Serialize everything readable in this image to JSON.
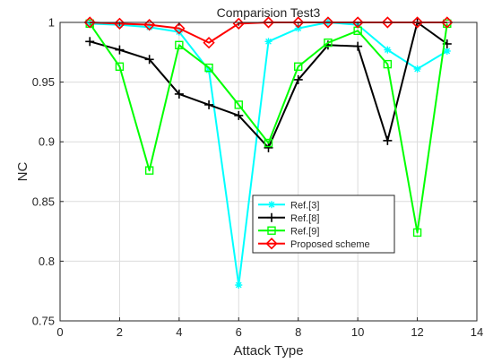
{
  "chart_data": {
    "type": "line",
    "title": "Comparision Test3",
    "xlabel": "Attack Type",
    "ylabel": "NC",
    "xlim": [
      0,
      14
    ],
    "ylim": [
      0.75,
      1
    ],
    "xticks": [
      "0",
      "2",
      "4",
      "6",
      "8",
      "10",
      "12",
      "14"
    ],
    "xtick_values": [
      0,
      2,
      4,
      6,
      8,
      10,
      12,
      14
    ],
    "yticks": [
      "0.75",
      "0.8",
      "0.85",
      "0.9",
      "0.95",
      "1"
    ],
    "ytick_values": [
      0.75,
      0.8,
      0.85,
      0.9,
      0.95,
      1
    ],
    "grid": true,
    "legend_position": "center",
    "x": [
      1,
      2,
      3,
      4,
      5,
      6,
      7,
      8,
      9,
      10,
      11,
      12,
      13
    ],
    "series": [
      {
        "name": "Ref.[3]",
        "color": "#00ffff",
        "marker": "asterisk",
        "values": [
          0.999,
          0.998,
          0.996,
          0.992,
          0.96,
          0.78,
          0.984,
          0.995,
          1.0,
          0.998,
          0.977,
          0.961,
          0.976
        ]
      },
      {
        "name": "Ref.[8]",
        "color": "#000000",
        "marker": "plus",
        "values": [
          0.984,
          0.977,
          0.969,
          0.94,
          0.931,
          0.922,
          0.895,
          0.952,
          0.981,
          0.98,
          0.901,
          1.0,
          0.982
        ]
      },
      {
        "name": "Ref.[9]",
        "color": "#00ff00",
        "marker": "square",
        "values": [
          0.999,
          0.963,
          0.876,
          0.981,
          0.962,
          0.931,
          0.899,
          0.963,
          0.983,
          0.993,
          0.965,
          0.824,
          0.999
        ]
      },
      {
        "name": "Proposed scheme",
        "color": "#ff0000",
        "marker": "diamond",
        "values": [
          1.0,
          0.999,
          0.998,
          0.995,
          0.983,
          0.999,
          1.0,
          1.0,
          1.0,
          1.0,
          1.0,
          1.0,
          1.0
        ]
      }
    ]
  }
}
